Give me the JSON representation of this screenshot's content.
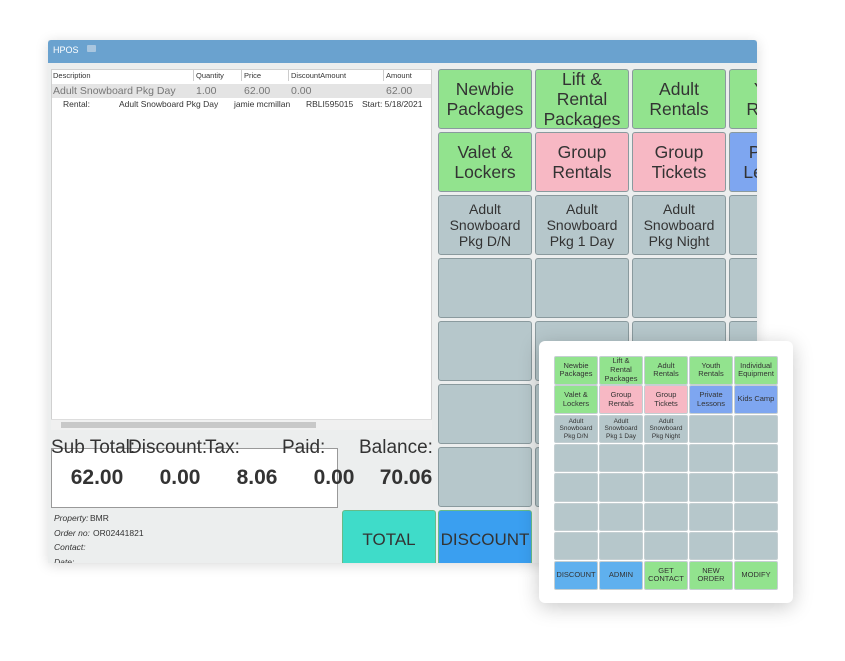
{
  "window": {
    "title": "HPOS"
  },
  "order_table": {
    "columns": [
      "Description",
      "Quantity",
      "Price",
      "DiscountAmount",
      "Amount"
    ],
    "rows": [
      [
        "Adult Snowboard Pkg Day",
        "1.00",
        "62.00",
        "0.00",
        "62.00"
      ]
    ],
    "detail": [
      "Rental:",
      "Adult Snowboard Pkg Day",
      "jamie mcmillan",
      "RBLI595015",
      "Start: 5/18/2021"
    ]
  },
  "totals": {
    "labels": [
      "Sub Total:",
      "Discount:",
      "Tax:",
      "Paid:",
      "Balance:"
    ],
    "values": [
      "62.00",
      "0.00",
      "8.06",
      "0.00",
      "70.06"
    ]
  },
  "order_info": [
    {
      "label": "Property:",
      "value": "BMR"
    },
    {
      "label": "Order no:",
      "value": "OR02441821"
    },
    {
      "label": "Contact:"
    },
    {
      "label": "Date:"
    }
  ],
  "actions": [
    "TOTAL",
    "DISCOUNT"
  ],
  "main_buttons": [
    [
      "Newbie\nPackages",
      "Lift &\nRental\nPackages",
      "Adult\nRentals",
      "Youth\nRentals"
    ],
    [
      "Valet &\nLockers",
      "Group\nRentals",
      "Group\nTickets",
      "Private\nLessons"
    ],
    [
      "Adult\nSnowboard\nPkg D/N",
      "Adult\nSnowboard\nPkg 1 Day",
      "Adult\nSnowboard\nPkg Night"
    ]
  ],
  "preview": {
    "buttons": [
      [
        "Newbie\nPackages",
        "Lift &\nRental\nPackages",
        "Adult\nRentals",
        "Youth\nRentals",
        "Individual\nEquipment"
      ],
      [
        "Valet &\nLockers",
        "Group\nRentals",
        "Group\nTickets",
        "Private\nLessons",
        "Kids Camp"
      ],
      [
        "Adult\nSnowboard\nPkg D/N",
        "Adult\nSnowboard\nPkg 1 Day",
        "Adult\nSnowboard\nPkg Night"
      ]
    ],
    "actions": [
      "DISCOUNT",
      "ADMIN",
      "GET\nCONTACT",
      "NEW\nORDER",
      "MODIFY"
    ]
  }
}
